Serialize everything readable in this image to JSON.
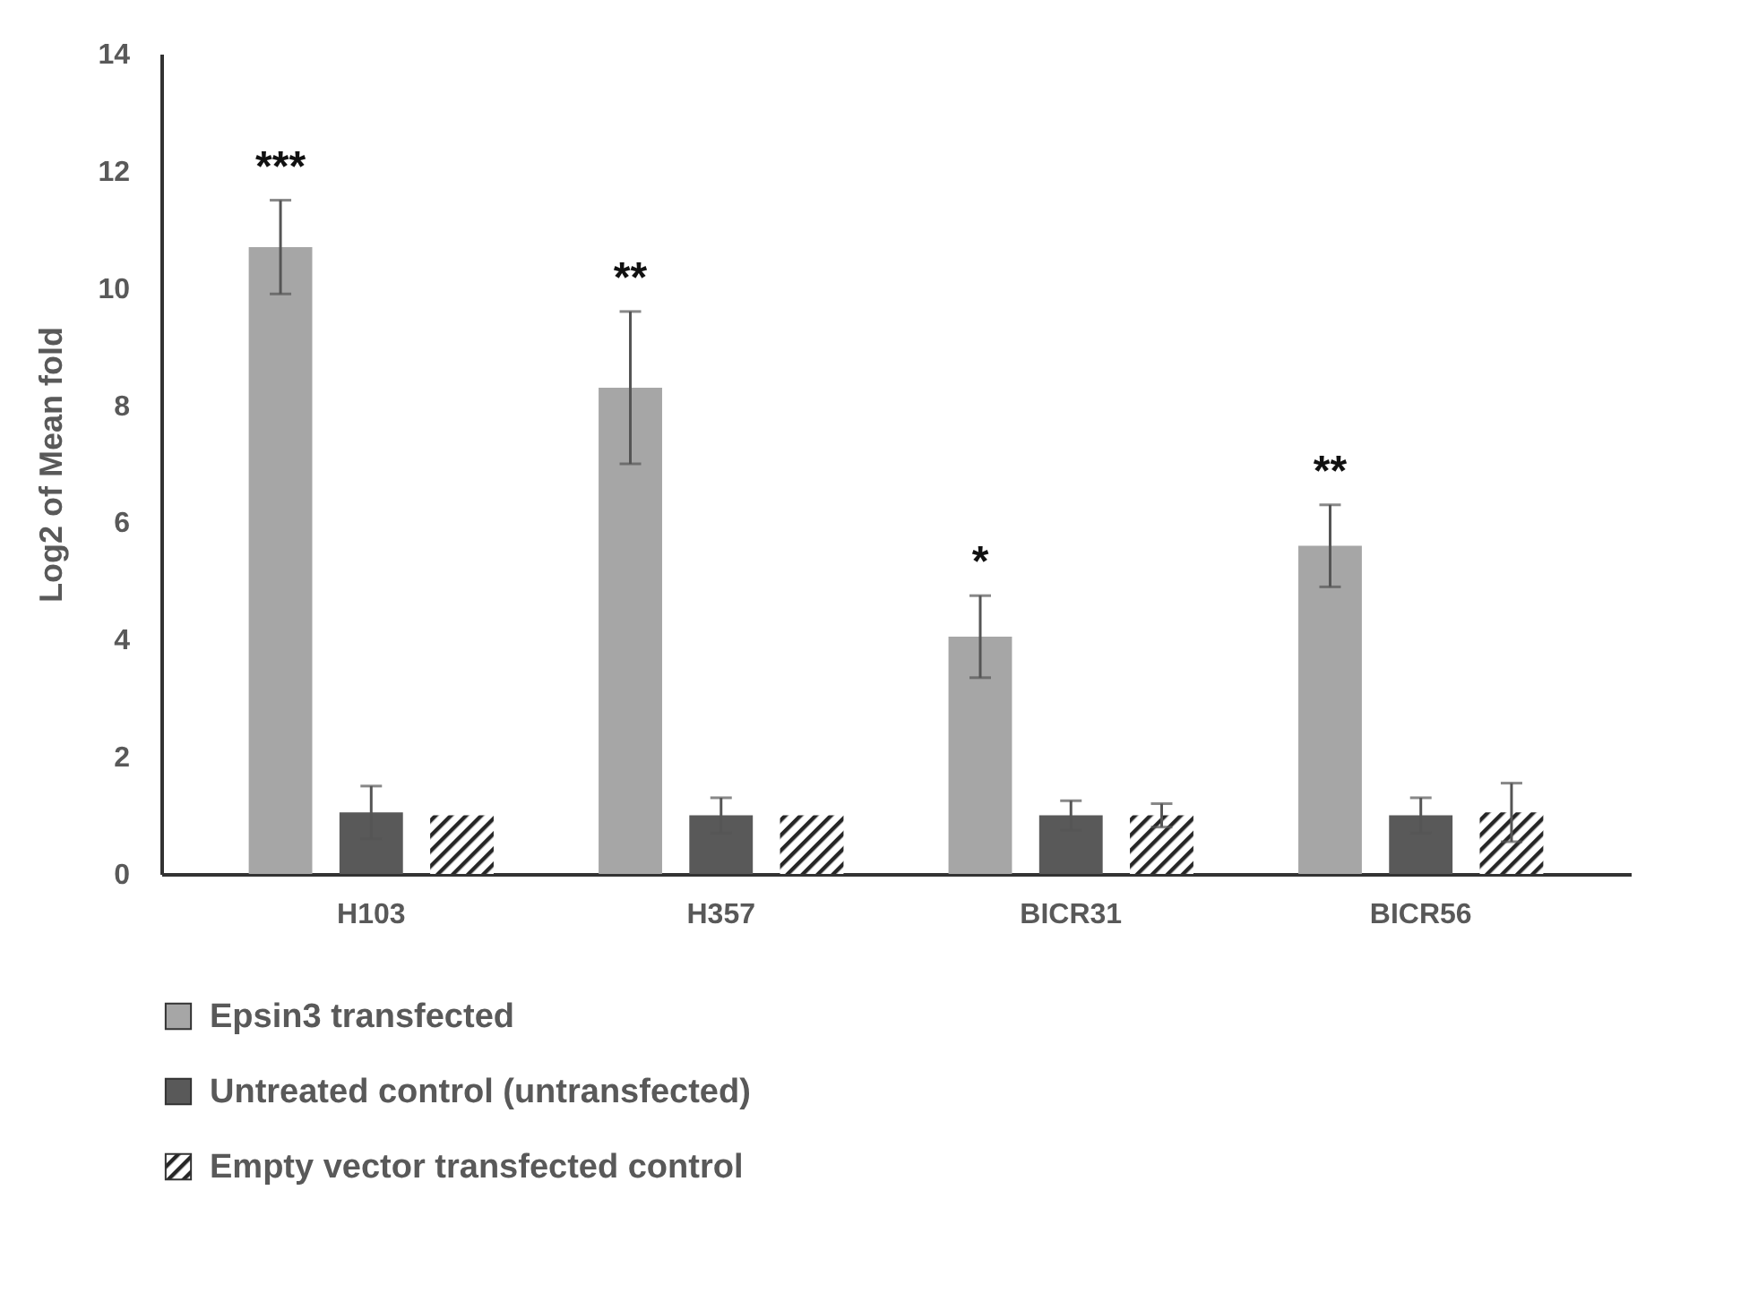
{
  "chart_data": {
    "type": "bar",
    "ylabel": "Log2 of Mean fold",
    "categories": [
      "H103",
      "H357",
      "BICR31",
      "BICR56"
    ],
    "series": [
      {
        "name": "Epsin3 transfected",
        "color": "#a6a6a6",
        "values": [
          10.7,
          8.3,
          4.05,
          5.6
        ],
        "errors": [
          0.8,
          1.3,
          0.7,
          0.7
        ]
      },
      {
        "name": "Untreated control (untransfected)",
        "color": "#595959",
        "values": [
          1.05,
          1.0,
          1.0,
          1.0
        ],
        "errors": [
          0.45,
          0.3,
          0.25,
          0.3
        ]
      },
      {
        "name": "Empty vector transfected control",
        "color": "#262626",
        "values": [
          1.0,
          1.0,
          1.0,
          1.05
        ],
        "errors": [
          null,
          null,
          0.2,
          0.5
        ]
      }
    ],
    "annotations": [
      "***",
      "**",
      "*",
      "**"
    ],
    "ylim": [
      0,
      14
    ],
    "yticks": [
      0,
      2,
      4,
      6,
      8,
      10,
      12,
      14
    ],
    "grid": false,
    "legend": "bottom"
  }
}
